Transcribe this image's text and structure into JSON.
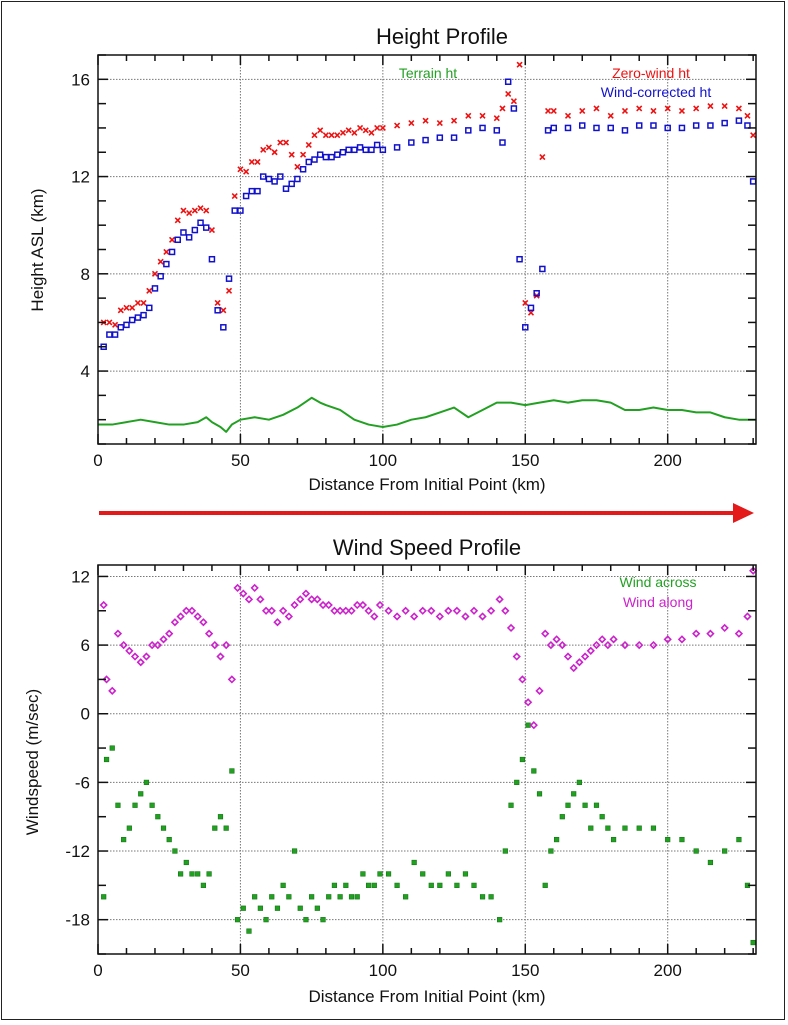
{
  "chart_data": [
    {
      "type": "scatter",
      "title": "Height Profile",
      "xlabel": "Distance From Initial Point (km)",
      "ylabel": "Height ASL (km)",
      "xlim": [
        0,
        231
      ],
      "ylim": [
        1,
        17
      ],
      "xticks": [
        0,
        50,
        100,
        150,
        200
      ],
      "yticks": [
        4,
        8,
        12,
        16
      ],
      "grid": true,
      "legend_position": "top-right",
      "series": [
        {
          "name": "Terrain ht",
          "kind": "line",
          "color": "#22a022",
          "x": [
            0,
            5,
            10,
            15,
            20,
            25,
            30,
            35,
            38,
            40,
            43,
            45,
            47,
            50,
            55,
            60,
            65,
            70,
            75,
            78,
            80,
            85,
            90,
            95,
            100,
            105,
            110,
            115,
            120,
            125,
            130,
            135,
            140,
            145,
            150,
            155,
            160,
            165,
            170,
            175,
            180,
            185,
            190,
            195,
            200,
            205,
            210,
            215,
            220,
            225,
            231
          ],
          "y": [
            1.8,
            1.8,
            1.9,
            2.0,
            1.9,
            1.8,
            1.8,
            1.9,
            2.1,
            1.9,
            1.7,
            1.5,
            1.8,
            2.0,
            2.1,
            2.0,
            2.2,
            2.5,
            2.9,
            2.7,
            2.6,
            2.4,
            2.0,
            1.8,
            1.7,
            1.8,
            2.0,
            2.1,
            2.3,
            2.5,
            2.1,
            2.4,
            2.7,
            2.7,
            2.6,
            2.7,
            2.8,
            2.7,
            2.8,
            2.8,
            2.7,
            2.4,
            2.4,
            2.5,
            2.4,
            2.4,
            2.3,
            2.3,
            2.1,
            2.0,
            2.0
          ]
        },
        {
          "name": "Zero-wind ht",
          "kind": "scatter",
          "marker": "x",
          "color": "#ee1111",
          "x": [
            2,
            4,
            6,
            8,
            10,
            12,
            14,
            16,
            18,
            20,
            22,
            24,
            26,
            28,
            30,
            32,
            34,
            36,
            38,
            40,
            42,
            44,
            46,
            48,
            50,
            52,
            54,
            56,
            58,
            60,
            62,
            64,
            66,
            68,
            70,
            72,
            74,
            76,
            78,
            80,
            82,
            84,
            86,
            88,
            90,
            92,
            94,
            96,
            98,
            100,
            105,
            110,
            115,
            120,
            125,
            130,
            135,
            140,
            142,
            144,
            146,
            148,
            150,
            152,
            154,
            156,
            158,
            160,
            165,
            170,
            175,
            180,
            185,
            190,
            195,
            200,
            205,
            210,
            215,
            220,
            225,
            228,
            230
          ],
          "y": [
            6.0,
            6.0,
            5.9,
            6.5,
            6.6,
            6.6,
            6.8,
            6.8,
            7.3,
            8.0,
            8.5,
            8.9,
            9.4,
            10.2,
            10.6,
            10.5,
            10.6,
            10.7,
            10.6,
            9.8,
            6.8,
            6.5,
            7.3,
            11.2,
            12.3,
            12.2,
            12.6,
            12.6,
            13.1,
            13.2,
            13.0,
            13.4,
            13.4,
            12.9,
            12.4,
            12.9,
            13.3,
            13.7,
            13.9,
            13.7,
            13.7,
            13.7,
            13.8,
            13.9,
            13.8,
            14.0,
            13.9,
            13.8,
            14.0,
            14.0,
            14.1,
            14.2,
            14.3,
            14.2,
            14.3,
            14.5,
            14.5,
            14.4,
            14.8,
            15.4,
            15.1,
            16.6,
            6.8,
            6.4,
            7.1,
            12.8,
            14.7,
            14.7,
            14.5,
            14.7,
            14.8,
            14.5,
            14.7,
            14.8,
            14.7,
            14.8,
            14.7,
            14.8,
            14.9,
            14.9,
            14.8,
            14.5,
            13.7
          ]
        },
        {
          "name": "Wind-corrected ht",
          "kind": "scatter",
          "marker": "square",
          "color": "#1111cc",
          "x": [
            2,
            4,
            6,
            8,
            10,
            12,
            14,
            16,
            18,
            20,
            22,
            24,
            26,
            28,
            30,
            32,
            34,
            36,
            38,
            40,
            42,
            44,
            46,
            48,
            50,
            52,
            54,
            56,
            58,
            60,
            62,
            64,
            66,
            68,
            70,
            72,
            74,
            76,
            78,
            80,
            82,
            84,
            86,
            88,
            90,
            92,
            94,
            96,
            98,
            100,
            105,
            110,
            115,
            120,
            125,
            130,
            135,
            140,
            142,
            144,
            146,
            148,
            150,
            152,
            154,
            156,
            158,
            160,
            165,
            170,
            175,
            180,
            185,
            190,
            195,
            200,
            205,
            210,
            215,
            220,
            225,
            228,
            230
          ],
          "y": [
            5.0,
            5.5,
            5.5,
            5.8,
            5.9,
            6.1,
            6.2,
            6.3,
            6.6,
            7.4,
            7.9,
            8.4,
            8.9,
            9.4,
            9.7,
            9.5,
            9.8,
            10.1,
            9.9,
            8.6,
            6.5,
            5.8,
            7.8,
            10.6,
            10.6,
            11.2,
            11.4,
            11.4,
            12.0,
            11.9,
            11.8,
            12.0,
            11.5,
            11.7,
            11.9,
            12.3,
            12.6,
            12.7,
            12.9,
            12.8,
            12.8,
            12.9,
            13.0,
            13.1,
            13.1,
            13.2,
            13.1,
            13.1,
            13.3,
            13.1,
            13.2,
            13.4,
            13.5,
            13.6,
            13.6,
            13.9,
            14.0,
            13.9,
            13.4,
            15.9,
            14.8,
            8.6,
            5.8,
            6.6,
            7.2,
            8.2,
            13.9,
            14.0,
            14.0,
            14.1,
            14.0,
            14.0,
            13.9,
            14.1,
            14.1,
            14.0,
            14.0,
            14.1,
            14.1,
            14.2,
            14.3,
            14.1,
            11.8
          ]
        }
      ]
    },
    {
      "type": "scatter",
      "title": "Wind Speed Profile",
      "xlabel": "Distance From Initial Point (km)",
      "ylabel": "Windspeed (m/sec)",
      "xlim": [
        0,
        231
      ],
      "ylim": [
        -21,
        13
      ],
      "xticks": [
        0,
        50,
        100,
        150,
        200
      ],
      "yticks": [
        -18,
        -12,
        -6,
        0,
        6,
        12
      ],
      "grid": true,
      "legend_position": "top-right",
      "series": [
        {
          "name": "Wind across",
          "kind": "scatter",
          "marker": "square-filled",
          "color": "#22a022",
          "x": [
            2,
            3,
            5,
            7,
            9,
            11,
            13,
            15,
            17,
            19,
            21,
            23,
            25,
            27,
            29,
            31,
            33,
            35,
            37,
            39,
            41,
            43,
            45,
            47,
            49,
            51,
            53,
            55,
            57,
            59,
            61,
            63,
            65,
            67,
            69,
            71,
            73,
            75,
            77,
            79,
            81,
            83,
            85,
            87,
            89,
            91,
            93,
            95,
            97,
            99,
            102,
            105,
            108,
            111,
            114,
            117,
            120,
            123,
            126,
            129,
            132,
            135,
            138,
            141,
            143,
            145,
            147,
            149,
            151,
            153,
            155,
            157,
            159,
            161,
            163,
            165,
            167,
            169,
            171,
            173,
            175,
            177,
            179,
            181,
            185,
            190,
            195,
            200,
            205,
            210,
            215,
            220,
            225,
            228,
            230
          ],
          "y": [
            -16,
            -4,
            -3,
            -8,
            -11,
            -10,
            -8,
            -7,
            -6,
            -8,
            -9,
            -10,
            -11,
            -12,
            -14,
            -13,
            -14,
            -14,
            -15,
            -14,
            -10,
            -9,
            -10,
            -5,
            -18,
            -17,
            -19,
            -16,
            -17,
            -18,
            -16,
            -17,
            -15,
            -16,
            -12,
            -17,
            -18,
            -16,
            -17,
            -18,
            -16,
            -15,
            -16,
            -15,
            -16,
            -16,
            -14,
            -15,
            -15,
            -14,
            -14,
            -15,
            -16,
            -13,
            -14,
            -15,
            -15,
            -14,
            -15,
            -14,
            -15,
            -16,
            -16,
            -18,
            -12,
            -8,
            -6,
            -4,
            -1,
            -5,
            -7,
            -15,
            -12,
            -11,
            -9,
            -8,
            -7,
            -6,
            -8,
            -10,
            -8,
            -9,
            -10,
            -11,
            -10,
            -10,
            -10,
            -11,
            -11,
            -12,
            -13,
            -12,
            -11,
            -15,
            -20
          ]
        },
        {
          "name": "Wind along",
          "kind": "scatter",
          "marker": "diamond",
          "color": "#cc22cc",
          "x": [
            2,
            3,
            5,
            7,
            9,
            11,
            13,
            15,
            17,
            19,
            21,
            23,
            25,
            27,
            29,
            31,
            33,
            35,
            37,
            39,
            41,
            43,
            45,
            47,
            49,
            51,
            53,
            55,
            57,
            59,
            61,
            63,
            65,
            67,
            69,
            71,
            73,
            75,
            77,
            79,
            81,
            83,
            85,
            87,
            89,
            91,
            93,
            95,
            97,
            99,
            102,
            105,
            108,
            111,
            114,
            117,
            120,
            123,
            126,
            129,
            132,
            135,
            138,
            141,
            143,
            145,
            147,
            149,
            151,
            153,
            155,
            157,
            159,
            161,
            163,
            165,
            167,
            169,
            171,
            173,
            175,
            177,
            179,
            181,
            185,
            190,
            195,
            200,
            205,
            210,
            215,
            220,
            225,
            228,
            230
          ],
          "y": [
            9.5,
            3,
            2,
            7,
            6,
            5.5,
            5,
            4.5,
            5,
            6,
            6,
            6.5,
            7,
            8,
            8.5,
            9,
            9,
            8.5,
            8,
            7,
            6,
            5,
            6,
            3,
            11,
            10.5,
            10,
            11,
            10,
            9,
            9,
            8,
            9,
            8.5,
            9.5,
            10,
            10.5,
            10,
            10,
            9.5,
            9.5,
            9,
            9,
            9,
            9,
            9.5,
            9.5,
            9,
            8.5,
            9.5,
            9,
            8.5,
            9,
            8.5,
            9,
            9,
            8.5,
            9,
            9,
            8.5,
            9,
            8.5,
            9,
            10,
            9,
            7.5,
            5,
            3,
            1,
            -1,
            2,
            7,
            6,
            6.5,
            6,
            5,
            4,
            4.5,
            5,
            5.5,
            6,
            6.5,
            6,
            6.5,
            6,
            6,
            6,
            6.5,
            6.5,
            7,
            7,
            7.5,
            7,
            8.5,
            12.5
          ]
        }
      ]
    }
  ],
  "arrow": {
    "label": "direction-of-travel",
    "color": "#e41a1a"
  }
}
